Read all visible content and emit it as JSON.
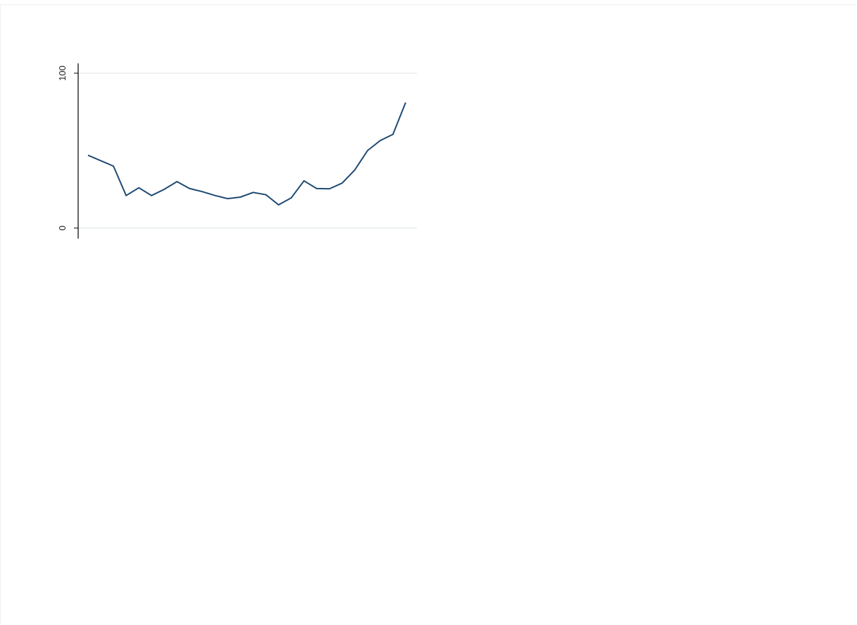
{
  "chart_data": {
    "type": "line",
    "title": "",
    "xlabel": "",
    "ylabel": "",
    "ylim": [
      0,
      100
    ],
    "yticks": [
      {
        "value": 0,
        "label": "0"
      },
      {
        "value": 100,
        "label": "100"
      }
    ],
    "grid": true,
    "colors": {
      "line": "#1f4a73",
      "grid": "#e8edf1",
      "axis": "#000000"
    },
    "series": [
      {
        "x": [
          1,
          2,
          3,
          4,
          5,
          6,
          7,
          8,
          9,
          10,
          11,
          12,
          13,
          14,
          15,
          16,
          17,
          18,
          19,
          20,
          21,
          22,
          23,
          24,
          25,
          26
        ],
        "values": [
          47,
          43.5,
          40,
          21,
          26,
          21,
          25,
          30,
          25.5,
          23.5,
          21,
          19,
          20,
          23,
          21.5,
          15,
          19.5,
          30.5,
          25.5,
          25.3,
          29,
          37.5,
          50,
          56.5,
          60.5,
          81
        ]
      }
    ]
  }
}
